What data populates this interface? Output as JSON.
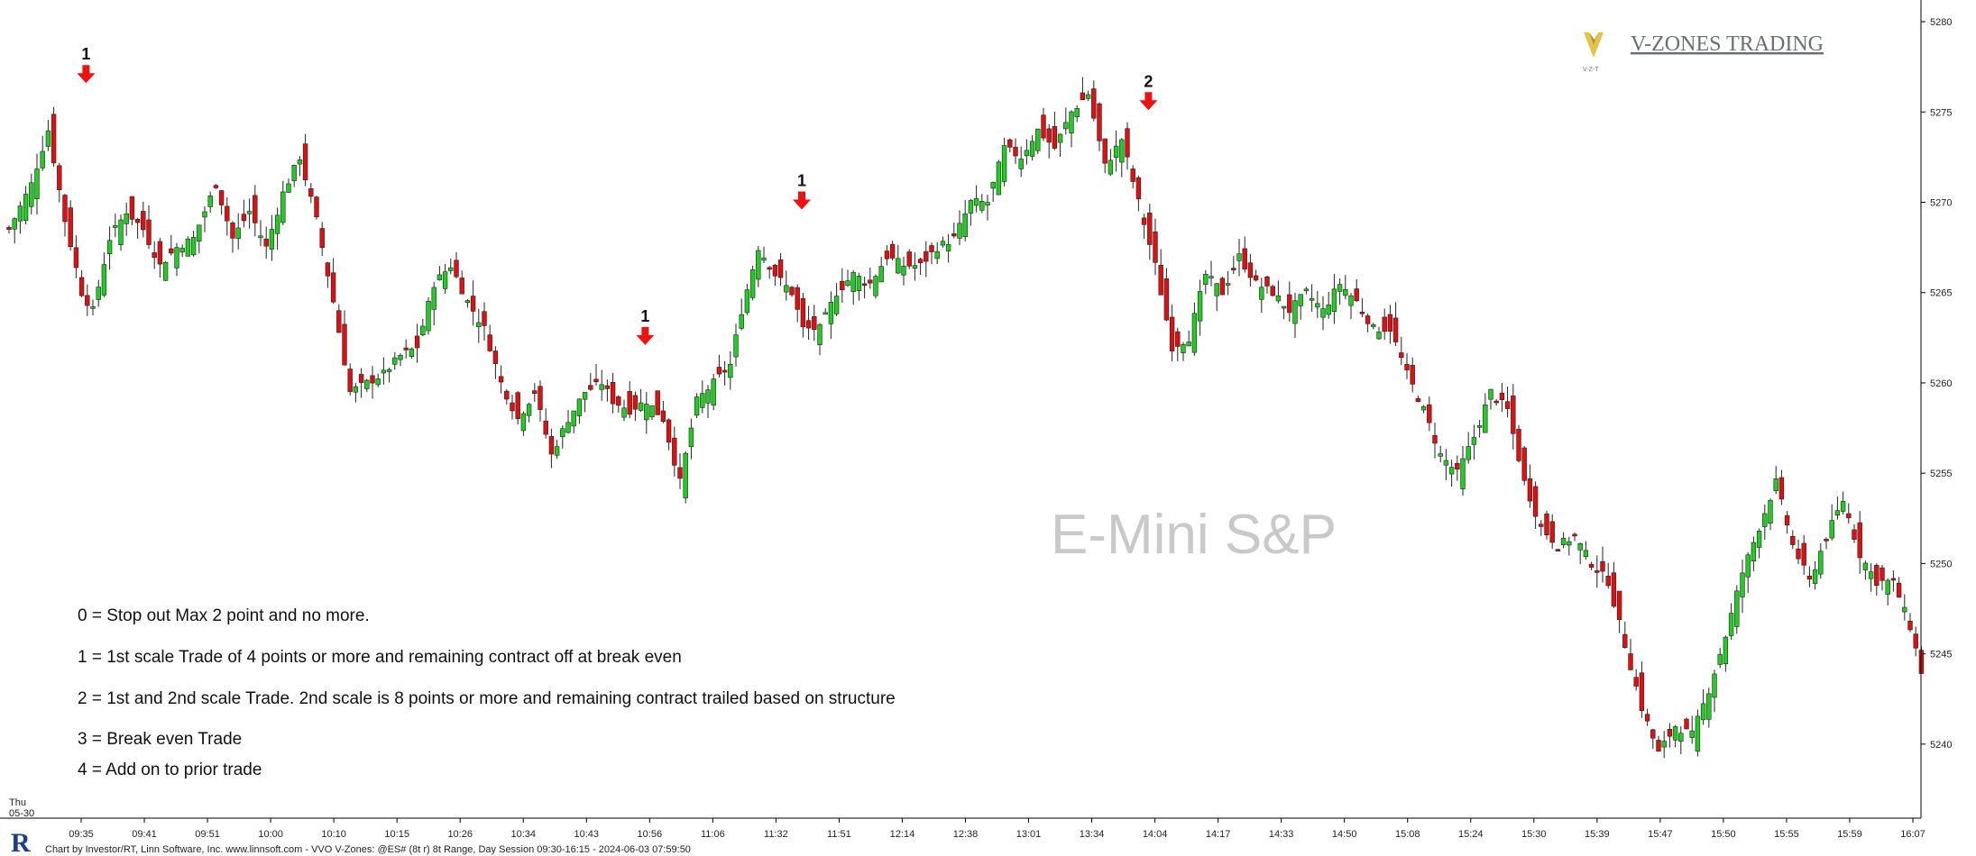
{
  "chart_data": {
    "type": "candlestick",
    "title": "E-Mini S&P",
    "watermark": "E-Mini S&P",
    "brand": "V-ZONES TRADING",
    "brand_logo_text": "V-Z-T",
    "date_label": [
      "Thu",
      "05-30"
    ],
    "footer": "Chart by Investor/RT, Linn Software, Inc. www.linnsoft.com - VVO V-Zones: @ES# (8t r) 8t Range, Day Session 09:30-16:15 - 2024-06-03 07:59:50",
    "ylim": [
      5236,
      5281
    ],
    "y_ticks": [
      5240,
      5245,
      5250,
      5255,
      5260,
      5265,
      5270,
      5275,
      5280
    ],
    "x_tick_labels": [
      "09:35",
      "09:41",
      "09:51",
      "10:00",
      "10:10",
      "10:15",
      "10:26",
      "10:34",
      "10:43",
      "10:56",
      "11:06",
      "11:32",
      "11:51",
      "12:14",
      "12:38",
      "13:01",
      "13:34",
      "14:04",
      "14:17",
      "14:33",
      "14:50",
      "15:08",
      "15:24",
      "15:30",
      "15:39",
      "15:47",
      "15:50",
      "15:55",
      "15:59",
      "16:07"
    ],
    "colors": {
      "up": "#22cc22",
      "down": "#dd1111",
      "marker": "#ee1111",
      "brand_logo": "#e6c24a"
    },
    "markers": [
      {
        "label": "1",
        "bar": 7
      },
      {
        "label": "1",
        "bar": 107
      },
      {
        "label": "1",
        "bar": 135
      },
      {
        "label": "2",
        "bar": 197
      }
    ],
    "legend": [
      "0 = Stop out  Max 2 point and no more.",
      "1 = 1st scale Trade of 4 points or more and remaining contract off at break even",
      "2 = 1st and 2nd scale Trade. 2nd scale is 8 points or more and remaining contract trailed based on structure",
      "3 = Break even Trade",
      "4 = Add  on to prior trade"
    ],
    "close_points": [
      [
        0,
        5268.5
      ],
      [
        4,
        5271
      ],
      [
        7,
        5274
      ],
      [
        10,
        5269
      ],
      [
        13,
        5265
      ],
      [
        15,
        5264
      ],
      [
        18,
        5268
      ],
      [
        21,
        5269.5
      ],
      [
        24,
        5268.5
      ],
      [
        27,
        5266.5
      ],
      [
        30,
        5267.5
      ],
      [
        33,
        5268
      ],
      [
        37,
        5271
      ],
      [
        40,
        5268
      ],
      [
        43,
        5269.5
      ],
      [
        46,
        5267.5
      ],
      [
        49,
        5270.5
      ],
      [
        52,
        5272.5
      ],
      [
        55,
        5269
      ],
      [
        58,
        5264.5
      ],
      [
        61,
        5259.5
      ],
      [
        64,
        5260
      ],
      [
        67,
        5260.5
      ],
      [
        70,
        5261.5
      ],
      [
        73,
        5262
      ],
      [
        76,
        5265.5
      ],
      [
        79,
        5266.5
      ],
      [
        82,
        5264.5
      ],
      [
        85,
        5263
      ],
      [
        88,
        5260
      ],
      [
        91,
        5258
      ],
      [
        94,
        5259.5
      ],
      [
        97,
        5256
      ],
      [
        100,
        5258
      ],
      [
        103,
        5259.5
      ],
      [
        106,
        5260
      ],
      [
        108,
        5259
      ],
      [
        111,
        5258.5
      ],
      [
        114,
        5259
      ],
      [
        117,
        5258
      ],
      [
        120,
        5254.5
      ],
      [
        123,
        5259
      ],
      [
        126,
        5260
      ],
      [
        129,
        5261
      ],
      [
        131,
        5264
      ],
      [
        134,
        5267.5
      ],
      [
        137,
        5266
      ],
      [
        140,
        5265
      ],
      [
        142,
        5263
      ],
      [
        145,
        5263
      ],
      [
        148,
        5265
      ],
      [
        151,
        5266
      ],
      [
        154,
        5265.5
      ],
      [
        157,
        5267
      ],
      [
        160,
        5266.5
      ],
      [
        163,
        5266.5
      ],
      [
        166,
        5267.5
      ],
      [
        169,
        5268
      ],
      [
        172,
        5270
      ],
      [
        175,
        5270
      ],
      [
        178,
        5273
      ],
      [
        181,
        5272.5
      ],
      [
        184,
        5274
      ],
      [
        187,
        5273
      ],
      [
        190,
        5275
      ],
      [
        193,
        5276
      ],
      [
        196,
        5272
      ],
      [
        199,
        5273.5
      ],
      [
        202,
        5270
      ],
      [
        205,
        5266.5
      ],
      [
        208,
        5262
      ],
      [
        211,
        5262.5
      ],
      [
        214,
        5266
      ],
      [
        217,
        5265
      ],
      [
        220,
        5267
      ],
      [
        223,
        5265.5
      ],
      [
        226,
        5265
      ],
      [
        229,
        5264
      ],
      [
        232,
        5265
      ],
      [
        235,
        5264
      ],
      [
        238,
        5265.5
      ],
      [
        241,
        5264.5
      ],
      [
        244,
        5263
      ],
      [
        247,
        5263
      ],
      [
        250,
        5260.5
      ],
      [
        253,
        5258.5
      ],
      [
        256,
        5256
      ],
      [
        259,
        5255
      ],
      [
        262,
        5257
      ],
      [
        265,
        5259.5
      ],
      [
        268,
        5258.5
      ],
      [
        271,
        5254.5
      ],
      [
        274,
        5252
      ],
      [
        277,
        5251
      ],
      [
        280,
        5251.5
      ],
      [
        283,
        5250
      ],
      [
        286,
        5249
      ],
      [
        289,
        5245.5
      ],
      [
        292,
        5242
      ],
      [
        295,
        5239.5
      ],
      [
        298,
        5241
      ],
      [
        301,
        5240.5
      ],
      [
        304,
        5243
      ],
      [
        307,
        5246
      ],
      [
        310,
        5249.5
      ],
      [
        313,
        5252
      ],
      [
        316,
        5254.5
      ],
      [
        319,
        5251
      ],
      [
        322,
        5249
      ],
      [
        325,
        5251.5
      ],
      [
        328,
        5253.5
      ],
      [
        331,
        5250.5
      ],
      [
        334,
        5249
      ],
      [
        337,
        5249
      ],
      [
        340,
        5246.5
      ],
      [
        342,
        5244
      ]
    ]
  }
}
